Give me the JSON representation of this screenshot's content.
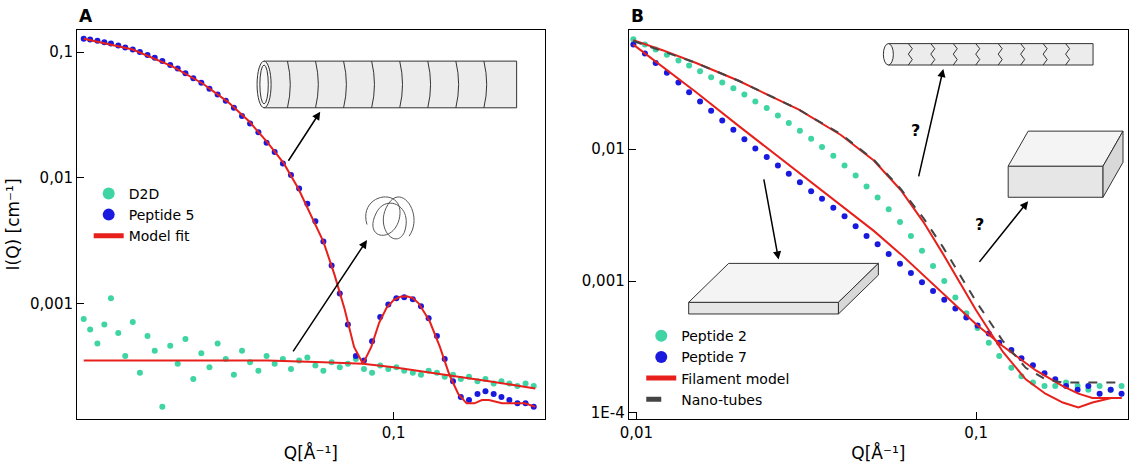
{
  "chart_data": [
    {
      "type": "scatter",
      "title": "A",
      "log": true,
      "grid": false,
      "legend": "left",
      "xlabel": "Q[Å⁻¹]",
      "ylabel": "I(Q) [cm⁻¹]",
      "xlim": [
        0.01,
        0.3
      ],
      "ylim": [
        0.00012,
        0.15
      ],
      "xticks": [
        {
          "value": 0.1,
          "label": "0,1"
        }
      ],
      "yticks": [
        {
          "value": 0.001,
          "label": "0,001"
        },
        {
          "value": 0.01,
          "label": "0,01"
        },
        {
          "value": 0.1,
          "label": "0,1"
        }
      ],
      "series": [
        {
          "name": "D2D",
          "color": "#3fd4a4",
          "type": "scatter",
          "marker": "circle",
          "x": [
            0.0105,
            0.011,
            0.0116,
            0.0122,
            0.0128,
            0.0135,
            0.0142,
            0.015,
            0.0158,
            0.0167,
            0.0176,
            0.0186,
            0.0197,
            0.0208,
            0.022,
            0.0233,
            0.0247,
            0.0262,
            0.0278,
            0.0295,
            0.0313,
            0.0332,
            0.0352,
            0.0374,
            0.0397,
            0.0421,
            0.0447,
            0.0474,
            0.0503,
            0.0534,
            0.0566,
            0.06,
            0.0637,
            0.0676,
            0.0717,
            0.076,
            0.0806,
            0.0855,
            0.0907,
            0.0962,
            0.102,
            0.108,
            0.115,
            0.122,
            0.129,
            0.137,
            0.145,
            0.154,
            0.163,
            0.173,
            0.184,
            0.195,
            0.207,
            0.219,
            0.232,
            0.246,
            0.261,
            0.277
          ],
          "values": [
            0.00075,
            0.00062,
            0.00048,
            0.00068,
            0.0011,
            0.00058,
            0.00038,
            0.00071,
            0.00028,
            0.00055,
            0.00042,
            0.00015,
            0.00046,
            0.00033,
            0.00052,
            0.00025,
            0.0004,
            0.00031,
            0.00048,
            0.00036,
            0.00027,
            0.00042,
            0.00034,
            0.00029,
            0.00038,
            0.00033,
            0.00036,
            0.0003,
            0.00035,
            0.00037,
            0.00032,
            0.00029,
            0.00034,
            0.00031,
            0.00033,
            0.00036,
            0.0003,
            0.00028,
            0.00032,
            0.0003,
            0.00031,
            0.00029,
            0.00028,
            0.00027,
            0.00029,
            0.00028,
            0.00026,
            0.00027,
            0.00025,
            0.00026,
            0.00024,
            0.00025,
            0.00023,
            0.00024,
            0.00023,
            0.00022,
            0.00023,
            0.00022
          ]
        },
        {
          "name": "Peptide 5",
          "color": "#1a1adf",
          "type": "scatter",
          "marker": "circle",
          "x": [
            0.0105,
            0.011,
            0.0116,
            0.0122,
            0.0128,
            0.0135,
            0.0142,
            0.015,
            0.0158,
            0.0167,
            0.0176,
            0.0186,
            0.0197,
            0.0208,
            0.022,
            0.0233,
            0.0247,
            0.0262,
            0.0278,
            0.0295,
            0.0313,
            0.0332,
            0.0352,
            0.0374,
            0.0397,
            0.0421,
            0.0447,
            0.0474,
            0.0503,
            0.0534,
            0.0566,
            0.06,
            0.0637,
            0.0676,
            0.0717,
            0.076,
            0.0806,
            0.0855,
            0.0907,
            0.0962,
            0.102,
            0.108,
            0.115,
            0.122,
            0.129,
            0.137,
            0.145,
            0.154,
            0.163,
            0.173,
            0.184,
            0.195,
            0.207,
            0.219,
            0.232,
            0.246,
            0.261,
            0.277
          ],
          "values": [
            0.128,
            0.126,
            0.123,
            0.12,
            0.117,
            0.113,
            0.109,
            0.105,
            0.1,
            0.095,
            0.09,
            0.085,
            0.079,
            0.074,
            0.068,
            0.062,
            0.057,
            0.051,
            0.046,
            0.041,
            0.036,
            0.031,
            0.027,
            0.023,
            0.019,
            0.016,
            0.013,
            0.0105,
            0.0082,
            0.0062,
            0.0045,
            0.0031,
            0.002,
            0.0012,
            0.00068,
            0.00038,
            0.00035,
            0.0005,
            0.00078,
            0.00098,
            0.0011,
            0.00112,
            0.00108,
            0.00095,
            0.00076,
            0.00055,
            0.00036,
            0.00024,
            0.00018,
            0.00017,
            0.00019,
            0.0002,
            0.00019,
            0.00018,
            0.00017,
            0.00016,
            0.00016,
            0.00015
          ]
        },
        {
          "name": "Model fit",
          "color": "#e8201c",
          "type": "line",
          "line_style": "solid",
          "x": [
            0.0105,
            0.015,
            0.02,
            0.025,
            0.03,
            0.035,
            0.04,
            0.045,
            0.05,
            0.055,
            0.06,
            0.065,
            0.07,
            0.075,
            0.08,
            0.085,
            0.09,
            0.095,
            0.1,
            0.105,
            0.11,
            0.115,
            0.12,
            0.13,
            0.14,
            0.15,
            0.16,
            0.17,
            0.18,
            0.19,
            0.2,
            0.22,
            0.24,
            0.26,
            0.28,
            null,
            0.0105,
            0.02,
            0.04,
            0.06,
            0.08,
            0.1,
            0.12,
            0.15,
            0.2,
            0.25,
            0.28
          ],
          "values": [
            0.128,
            0.105,
            0.077,
            0.056,
            0.04,
            0.028,
            0.019,
            0.013,
            0.0082,
            0.005,
            0.0031,
            0.0017,
            0.0009,
            0.00045,
            0.00033,
            0.00045,
            0.0007,
            0.00092,
            0.00106,
            0.00113,
            0.00114,
            0.0011,
            0.001,
            0.00072,
            0.00045,
            0.00027,
            0.00019,
            0.00016,
            0.00016,
            0.00017,
            0.00017,
            0.00016,
            0.00016,
            0.00016,
            0.00015,
            null,
            0.00035,
            0.00035,
            0.00035,
            0.00034,
            0.00033,
            0.00031,
            0.00029,
            0.00027,
            0.00024,
            0.00022,
            0.00021
          ]
        }
      ]
    },
    {
      "type": "scatter",
      "title": "B",
      "log": true,
      "grid": false,
      "legend": "lower left",
      "xlabel": "Q[Å⁻¹]",
      "xlim": [
        0.0095,
        0.28
      ],
      "ylim": [
        9e-05,
        0.08
      ],
      "xticks": [
        {
          "value": 0.01,
          "label": "0,01"
        },
        {
          "value": 0.1,
          "label": "0,1"
        }
      ],
      "yticks": [
        {
          "value": 0.0001,
          "label": "1E-4"
        },
        {
          "value": 0.001,
          "label": "0,001"
        },
        {
          "value": 0.01,
          "label": "0,01"
        }
      ],
      "annotations": [
        "?",
        "?"
      ],
      "series": [
        {
          "name": "Peptide 2",
          "color": "#3fd4a4",
          "type": "scatter",
          "marker": "circle",
          "x": [
            0.0098,
            0.0106,
            0.0114,
            0.0123,
            0.0133,
            0.0143,
            0.0154,
            0.0166,
            0.0179,
            0.0193,
            0.0208,
            0.0224,
            0.0242,
            0.0261,
            0.0281,
            0.0303,
            0.0327,
            0.0352,
            0.038,
            0.041,
            0.0442,
            0.0476,
            0.0513,
            0.0553,
            0.0597,
            0.0643,
            0.0693,
            0.0747,
            0.0806,
            0.0869,
            0.0936,
            0.101,
            0.109,
            0.117,
            0.127,
            0.136,
            0.147,
            0.159,
            0.171,
            0.184,
            0.199,
            0.214,
            0.231,
            0.249,
            0.268
          ],
          "values": [
            0.068,
            0.062,
            0.057,
            0.052,
            0.047,
            0.043,
            0.039,
            0.035,
            0.032,
            0.029,
            0.026,
            0.023,
            0.0205,
            0.018,
            0.0158,
            0.0138,
            0.012,
            0.0104,
            0.0089,
            0.0075,
            0.0063,
            0.0052,
            0.0043,
            0.0035,
            0.0028,
            0.0022,
            0.0017,
            0.0013,
            0.001,
            0.00075,
            0.00057,
            0.00044,
            0.00034,
            0.00027,
            0.00022,
            0.00019,
            0.00017,
            0.00016,
            0.00016,
            0.00017,
            0.00016,
            0.00015,
            0.00016,
            0.00015,
            0.00016
          ]
        },
        {
          "name": "Peptide 7",
          "color": "#1a1adf",
          "type": "scatter",
          "marker": "circle",
          "x": [
            0.0098,
            0.0106,
            0.0114,
            0.0123,
            0.0133,
            0.0143,
            0.0154,
            0.0166,
            0.0179,
            0.0193,
            0.0208,
            0.0224,
            0.0242,
            0.0261,
            0.0281,
            0.0303,
            0.0327,
            0.0352,
            0.038,
            0.041,
            0.0442,
            0.0476,
            0.0513,
            0.0553,
            0.0597,
            0.0643,
            0.0693,
            0.0747,
            0.0806,
            0.0869,
            0.0936,
            0.101,
            0.109,
            0.117,
            0.127,
            0.136,
            0.147,
            0.159,
            0.171,
            0.184,
            0.199,
            0.214,
            0.231,
            0.249,
            0.268
          ],
          "values": [
            0.062,
            0.053,
            0.045,
            0.038,
            0.032,
            0.027,
            0.023,
            0.0195,
            0.0165,
            0.014,
            0.0119,
            0.0101,
            0.0087,
            0.0075,
            0.0065,
            0.0056,
            0.0048,
            0.0042,
            0.0036,
            0.0031,
            0.0026,
            0.0022,
            0.0019,
            0.0016,
            0.00135,
            0.00115,
            0.00098,
            0.00084,
            0.00072,
            0.00062,
            0.00053,
            0.00046,
            0.0004,
            0.00034,
            0.0003,
            0.00026,
            0.00023,
            0.0002,
            0.00018,
            0.00016,
            0.00015,
            0.00016,
            0.00014,
            0.00015,
            0.00014
          ]
        },
        {
          "name": "Filament model",
          "color": "#e8201c",
          "type": "line",
          "line_style": "solid",
          "x": [
            0.0098,
            0.012,
            0.015,
            0.02,
            0.025,
            0.03,
            0.04,
            0.05,
            0.06,
            0.07,
            0.08,
            0.1,
            0.12,
            0.15,
            0.18,
            0.2,
            0.22,
            0.25,
            0.268,
            null,
            0.0098,
            0.012,
            0.015,
            0.02,
            0.025,
            0.03,
            0.04,
            0.05,
            0.06,
            0.07,
            0.08,
            0.09,
            0.1,
            0.12,
            0.14,
            0.16,
            0.18,
            0.2,
            0.22,
            0.25,
            0.268
          ],
          "values": [
            0.062,
            0.042,
            0.027,
            0.015,
            0.0096,
            0.0067,
            0.0038,
            0.0024,
            0.0016,
            0.0011,
            0.0008,
            0.00047,
            0.00032,
            0.00021,
            0.00016,
            0.00014,
            0.00013,
            0.00013,
            0.00013,
            null,
            0.067,
            0.056,
            0.045,
            0.033,
            0.025,
            0.02,
            0.0128,
            0.0082,
            0.0049,
            0.0028,
            0.0016,
            0.00095,
            0.0006,
            0.00029,
            0.00018,
            0.00014,
            0.00012,
            0.00011,
            0.00012,
            0.00013,
            0.00013
          ]
        },
        {
          "name": "Nano-tubes",
          "color": "#444444",
          "type": "line",
          "line_style": "dashed",
          "x": [
            0.0098,
            0.012,
            0.015,
            0.02,
            0.025,
            0.03,
            0.04,
            0.05,
            0.06,
            0.07,
            0.08,
            0.09,
            0.1,
            0.12,
            0.14,
            0.16,
            0.18,
            0.2,
            0.22,
            0.25,
            0.268
          ],
          "values": [
            0.066,
            0.055,
            0.045,
            0.033,
            0.025,
            0.02,
            0.013,
            0.0083,
            0.005,
            0.003,
            0.0018,
            0.0011,
            0.0007,
            0.00035,
            0.00022,
            0.00018,
            0.00017,
            0.00017,
            0.00017,
            0.00017,
            0.00017
          ]
        }
      ]
    }
  ]
}
